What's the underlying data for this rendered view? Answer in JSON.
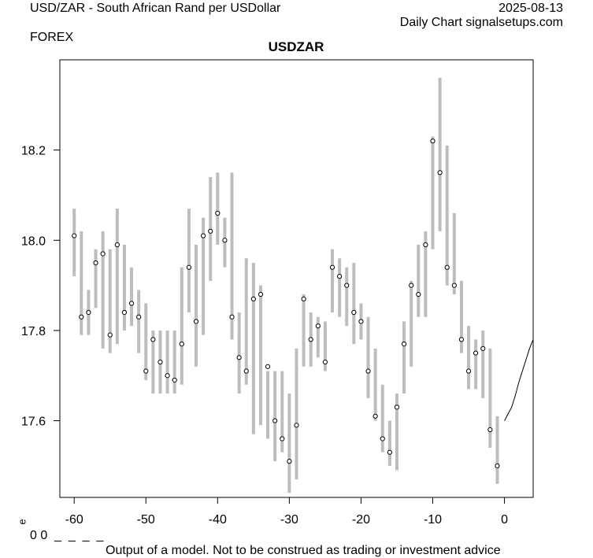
{
  "header": {
    "left_title": "USD/ZAR - South African Rand per USDollar",
    "date": "2025-08-13",
    "right_subtitle": "Daily Chart signalsetups.com",
    "market": "FOREX"
  },
  "footer": {
    "corner_glyph": "e",
    "corner_text": "0 0  _  _  _  _",
    "disclaimer": "Output of a model. Not to be construed as trading or investment advice"
  },
  "colors": {
    "range_bar": "#bdbdbd",
    "close_marker_stroke": "#000000",
    "projection_line": "#000000",
    "plot_border": "#000000"
  },
  "chart_data": {
    "type": "range",
    "title": "USDZAR",
    "xlabel": "",
    "ylabel": "",
    "xlim": [
      -62,
      4
    ],
    "ylim": [
      17.43,
      18.4
    ],
    "x_ticks": [
      -60,
      -50,
      -40,
      -30,
      -20,
      -10,
      0
    ],
    "y_ticks": [
      17.6,
      17.8,
      18.0,
      18.2
    ],
    "y_tick_labels": [
      "17.6",
      "17.8",
      "18.0",
      "18.2"
    ],
    "grid": false,
    "legend": "none",
    "series": [
      {
        "kind": "daily_range",
        "x": [
          -60,
          -59,
          -58,
          -57,
          -56,
          -55,
          -54,
          -53,
          -52,
          -51,
          -50,
          -49,
          -48,
          -47,
          -46,
          -45,
          -44,
          -43,
          -42,
          -41,
          -40,
          -39,
          -38,
          -37,
          -36,
          -35,
          -34,
          -33,
          -32,
          -31,
          -30,
          -29,
          -28,
          -27,
          -26,
          -25,
          -24,
          -23,
          -22,
          -21,
          -20,
          -19,
          -18,
          -17,
          -16,
          -15,
          -14,
          -13,
          -12,
          -11,
          -10,
          -9,
          -8,
          -7,
          -6,
          -5,
          -4,
          -3,
          -2,
          -1
        ],
        "high": [
          18.07,
          18.02,
          17.89,
          17.98,
          18.02,
          17.98,
          18.07,
          17.99,
          17.94,
          17.89,
          17.86,
          17.8,
          17.8,
          17.8,
          17.8,
          17.94,
          18.07,
          17.99,
          18.05,
          18.14,
          18.15,
          18.05,
          18.15,
          17.84,
          17.96,
          17.95,
          17.9,
          17.71,
          17.71,
          17.71,
          17.66,
          17.76,
          17.88,
          17.84,
          17.83,
          17.82,
          17.98,
          17.96,
          17.94,
          17.95,
          17.86,
          17.83,
          17.76,
          17.68,
          17.6,
          17.66,
          17.82,
          17.91,
          17.99,
          18.02,
          18.23,
          18.36,
          18.21,
          18.06,
          17.91,
          17.81,
          17.78,
          17.8,
          17.76,
          17.61
        ],
        "low": [
          17.92,
          17.79,
          17.79,
          17.85,
          17.76,
          17.75,
          17.77,
          17.8,
          17.81,
          17.75,
          17.69,
          17.66,
          17.66,
          17.66,
          17.66,
          17.68,
          17.84,
          17.72,
          17.79,
          17.91,
          17.99,
          17.94,
          17.78,
          17.66,
          17.68,
          17.57,
          17.59,
          17.56,
          17.51,
          17.53,
          17.44,
          17.47,
          17.72,
          17.72,
          17.74,
          17.71,
          17.84,
          17.83,
          17.81,
          17.77,
          17.78,
          17.65,
          17.6,
          17.53,
          17.5,
          17.49,
          17.66,
          17.72,
          17.83,
          17.83,
          17.98,
          18.02,
          17.9,
          17.88,
          17.75,
          17.67,
          17.67,
          17.65,
          17.54,
          17.46
        ],
        "close": [
          18.01,
          17.83,
          17.84,
          17.95,
          17.97,
          17.79,
          17.99,
          17.84,
          17.86,
          17.83,
          17.71,
          17.78,
          17.73,
          17.7,
          17.69,
          17.77,
          17.94,
          17.82,
          18.01,
          18.02,
          18.06,
          18.0,
          17.83,
          17.74,
          17.71,
          17.87,
          17.88,
          17.72,
          17.6,
          17.56,
          17.51,
          17.59,
          17.87,
          17.78,
          17.81,
          17.73,
          17.94,
          17.92,
          17.9,
          17.84,
          17.82,
          17.71,
          17.61,
          17.56,
          17.53,
          17.63,
          17.77,
          17.9,
          17.88,
          17.99,
          18.22,
          18.15,
          17.94,
          17.9,
          17.78,
          17.71,
          17.75,
          17.76,
          17.58,
          17.5
        ]
      },
      {
        "kind": "projection",
        "x": [
          0,
          0.5,
          1,
          1.5,
          2,
          2.5,
          3,
          3.5,
          4
        ],
        "y": [
          17.6,
          17.615,
          17.63,
          17.655,
          17.685,
          17.71,
          17.735,
          17.76,
          17.78
        ]
      }
    ]
  }
}
